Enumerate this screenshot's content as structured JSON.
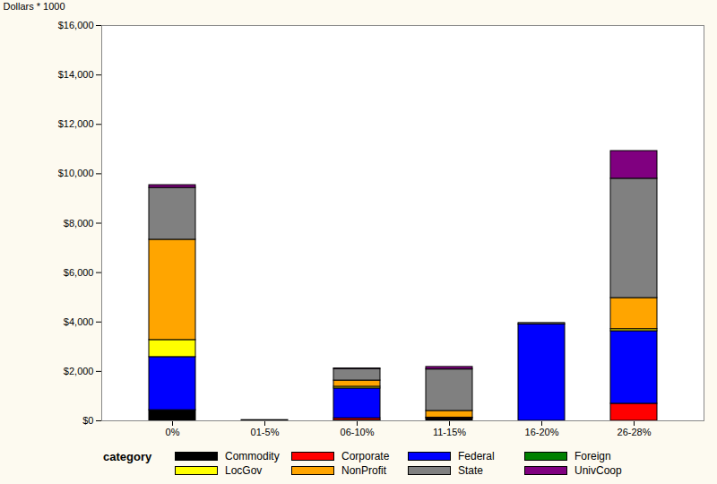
{
  "chart_data": {
    "type": "bar",
    "stacked": true,
    "y_label": "Dollars * 1000",
    "legend_title": "category",
    "legend": "bottom",
    "grid": false,
    "categories": [
      "0%",
      "01-5%",
      "06-10%",
      "11-15%",
      "16-20%",
      "26-28%"
    ],
    "ylim": [
      0,
      16000
    ],
    "yticks": [
      {
        "value": 0,
        "label": "$0"
      },
      {
        "value": 2000,
        "label": "$2,000"
      },
      {
        "value": 4000,
        "label": "$4,000"
      },
      {
        "value": 6000,
        "label": "$6,000"
      },
      {
        "value": 8000,
        "label": "$8,000"
      },
      {
        "value": 10000,
        "label": "$10,000"
      },
      {
        "value": 12000,
        "label": "$12,000"
      },
      {
        "value": 14000,
        "label": "$14,000"
      },
      {
        "value": 16000,
        "label": "$16,000"
      }
    ],
    "series": [
      {
        "name": "Commodity",
        "color": "#000000",
        "values": [
          430,
          30,
          20,
          100,
          0,
          0
        ]
      },
      {
        "name": "Corporate",
        "color": "#ff0000",
        "values": [
          0,
          0,
          80,
          30,
          0,
          690
        ]
      },
      {
        "name": "Federal",
        "color": "#0000ff",
        "values": [
          2150,
          0,
          1210,
          0,
          3900,
          2940
        ]
      },
      {
        "name": "Foreign",
        "color": "#008000",
        "values": [
          0,
          0,
          0,
          0,
          0,
          0
        ]
      },
      {
        "name": "LocGov",
        "color": "#ffff00",
        "values": [
          690,
          0,
          70,
          0,
          0,
          80
        ]
      },
      {
        "name": "NonProfit",
        "color": "#ffa500",
        "values": [
          4060,
          0,
          250,
          270,
          0,
          1260
        ]
      },
      {
        "name": "State",
        "color": "#808080",
        "values": [
          2100,
          0,
          470,
          1680,
          60,
          4830
        ]
      },
      {
        "name": "UnivCoop",
        "color": "#800080",
        "values": [
          110,
          0,
          20,
          100,
          0,
          1120
        ]
      }
    ]
  }
}
